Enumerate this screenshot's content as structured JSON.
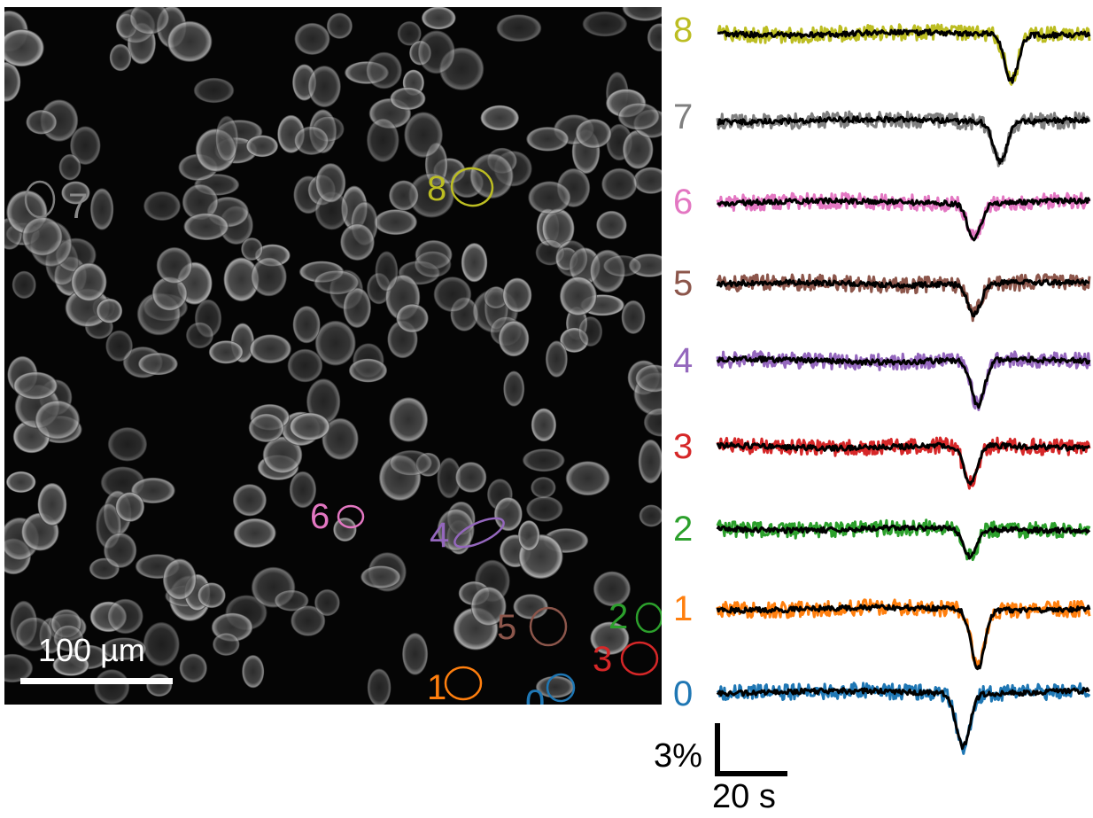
{
  "micrograph": {
    "scale_bar": {
      "label": "100 µm"
    },
    "rois": [
      {
        "id": "0",
        "label": "0",
        "color": "#1f77b4"
      },
      {
        "id": "1",
        "label": "1",
        "color": "#ff7f0e"
      },
      {
        "id": "2",
        "label": "2",
        "color": "#2ca02c"
      },
      {
        "id": "3",
        "label": "3",
        "color": "#d62728"
      },
      {
        "id": "4",
        "label": "4",
        "color": "#9467bd"
      },
      {
        "id": "5",
        "label": "5",
        "color": "#8c564b"
      },
      {
        "id": "6",
        "label": "6",
        "color": "#e377c2"
      },
      {
        "id": "7",
        "label": "7",
        "color": "#7f7f7f"
      },
      {
        "id": "8",
        "label": "8",
        "color": "#bcbd22"
      }
    ]
  },
  "traces": {
    "items": [
      {
        "label": "8",
        "color": "#bcbd22",
        "dip_time": 0.79,
        "dip_depth": 2.6
      },
      {
        "label": "7",
        "color": "#7f7f7f",
        "dip_time": 0.76,
        "dip_depth": 2.2
      },
      {
        "label": "6",
        "color": "#e377c2",
        "dip_time": 0.69,
        "dip_depth": 2.0
      },
      {
        "label": "5",
        "color": "#8c564b",
        "dip_time": 0.69,
        "dip_depth": 1.7
      },
      {
        "label": "4",
        "color": "#9467bd",
        "dip_time": 0.7,
        "dip_depth": 2.6
      },
      {
        "label": "3",
        "color": "#d62728",
        "dip_time": 0.68,
        "dip_depth": 2.1
      },
      {
        "label": "2",
        "color": "#2ca02c",
        "dip_time": 0.68,
        "dip_depth": 1.6
      },
      {
        "label": "1",
        "color": "#ff7f0e",
        "dip_time": 0.7,
        "dip_depth": 3.3
      },
      {
        "label": "0",
        "color": "#1f77b4",
        "dip_time": 0.66,
        "dip_depth": 3.0
      }
    ],
    "overlay_color": "#000000",
    "scale_bar": {
      "amplitude_label": "3%",
      "time_label": "20 s"
    }
  }
}
